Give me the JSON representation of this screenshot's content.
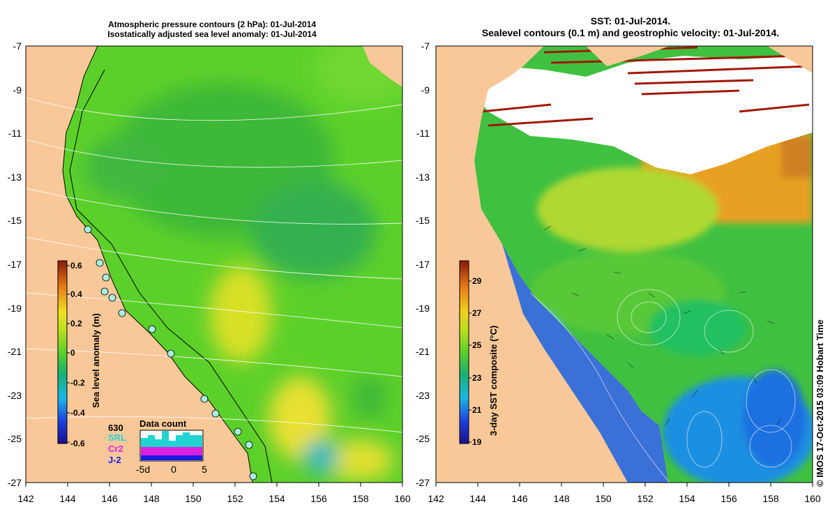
{
  "left_panel": {
    "title_line1": "Atmospheric pressure contours (2 hPa): 01-Jul-2014",
    "title_line2": "Isostatically adjusted sea level anomaly: 01-Jul-2014",
    "colorbar": {
      "label": "Sea level anomaly (m)",
      "ticks": [
        "0.6",
        "0.4",
        "0.2",
        "0",
        "-0.2",
        "-0.4",
        "-0.6"
      ],
      "range": [
        -0.6,
        0.6
      ]
    },
    "legend": {
      "title": "Data count",
      "satellites": [
        {
          "name": "630",
          "color": "#000000"
        },
        {
          "name": "SRL",
          "color": "#22d3d3"
        },
        {
          "name": "Cr2",
          "color": "#e020e0"
        },
        {
          "name": "J-2",
          "color": "#1a1ae0"
        }
      ],
      "x_labels": [
        "-5d",
        "0",
        "5"
      ]
    }
  },
  "right_panel": {
    "title_line1": "SST: 01-Jul-2014.",
    "title_line2": "Sealevel contours (0.1 m) and geostrophic velocity: 01-Jul-2014.",
    "colorbar": {
      "label": "3-day SST composite (°C)",
      "ticks": [
        "29",
        "27",
        "25",
        "23",
        "21",
        "19"
      ],
      "range": [
        19,
        30
      ]
    }
  },
  "axes": {
    "lon_ticks": [
      "142",
      "144",
      "146",
      "148",
      "150",
      "152",
      "154",
      "156",
      "158",
      "160"
    ],
    "lat_ticks": [
      "-7",
      "-9",
      "-11",
      "-13",
      "-15",
      "-17",
      "-19",
      "-21",
      "-23",
      "-25",
      "-27"
    ],
    "lon_range": [
      142,
      160
    ],
    "lat_range": [
      -27,
      -7
    ]
  },
  "credit": "© IMOS 17-Oct-2015 03:09 Hobart Time",
  "colors": {
    "land": "#f9c899",
    "sla_neutral": "#5ccf2a",
    "sst_land": "#f9c899"
  }
}
